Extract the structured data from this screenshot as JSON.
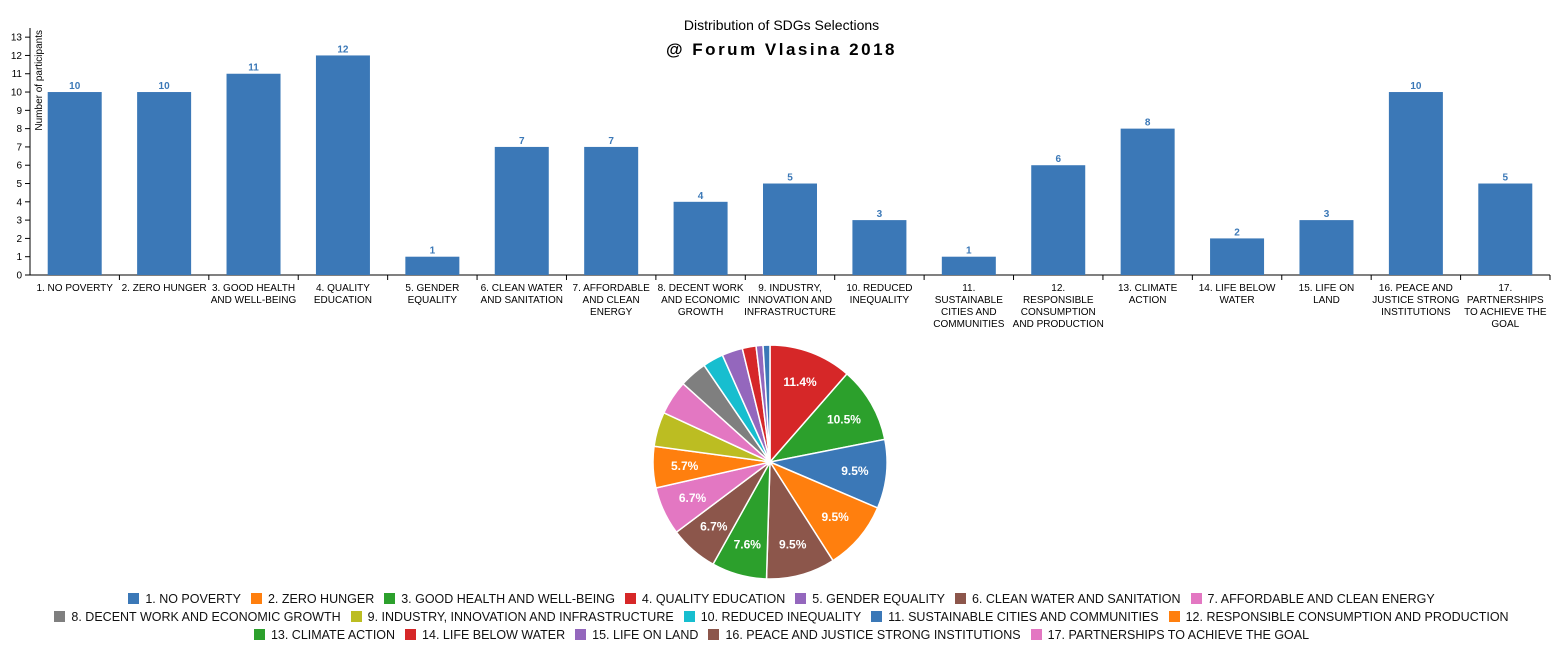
{
  "title": "Distribution of SDGs Selections",
  "subtitle": "@ Forum Vlasina 2018",
  "chart_data": [
    {
      "type": "bar",
      "ylabel": "Number of participants",
      "xlabel": "",
      "ylim": [
        0,
        13.5
      ],
      "yticks": [
        0,
        1,
        2,
        3,
        4,
        5,
        6,
        7,
        8,
        9,
        10,
        11,
        12,
        13
      ],
      "bar_color": "#3b78b7",
      "categories": [
        "1. NO POVERTY",
        "2. ZERO HUNGER",
        "3. GOOD HEALTH AND WELL-BEING",
        "4. QUALITY EDUCATION",
        "5. GENDER EQUALITY",
        "6. CLEAN WATER AND SANITATION",
        "7. AFFORDABLE AND CLEAN ENERGY",
        "8. DECENT WORK AND ECONOMIC GROWTH",
        "9. INDUSTRY, INNOVATION AND INFRASTRUCTURE",
        "10. REDUCED INEQUALITY",
        "11. SUSTAINABLE CITIES AND COMMUNITIES",
        "12. RESPONSIBLE CONSUMPTION AND PRODUCTION",
        "13. CLIMATE ACTION",
        "14. LIFE BELOW WATER",
        "15. LIFE ON LAND",
        "16. PEACE AND JUSTICE STRONG INSTITUTIONS",
        "17. PARTNERSHIPS TO ACHIEVE THE GOAL"
      ],
      "tick_labels": [
        [
          "1. NO POVERTY"
        ],
        [
          "2. ZERO HUNGER"
        ],
        [
          "3. GOOD HEALTH",
          "AND WELL-BEING"
        ],
        [
          "4. QUALITY",
          "EDUCATION"
        ],
        [
          "5. GENDER",
          "EQUALITY"
        ],
        [
          "6. CLEAN WATER",
          "AND SANITATION"
        ],
        [
          "7. AFFORDABLE",
          "AND CLEAN",
          "ENERGY"
        ],
        [
          "8. DECENT WORK",
          "AND ECONOMIC",
          "GROWTH"
        ],
        [
          "9. INDUSTRY,",
          "INNOVATION AND",
          "INFRASTRUCTURE"
        ],
        [
          "10. REDUCED",
          "INEQUALITY"
        ],
        [
          "11.",
          "SUSTAINABLE",
          "CITIES AND",
          "COMMUNITIES"
        ],
        [
          "12.",
          "RESPONSIBLE",
          "CONSUMPTION",
          "AND PRODUCTION"
        ],
        [
          "13. CLIMATE",
          "ACTION"
        ],
        [
          "14. LIFE BELOW",
          "WATER"
        ],
        [
          "15. LIFE ON",
          "LAND"
        ],
        [
          "16. PEACE AND",
          "JUSTICE STRONG",
          "INSTITUTIONS"
        ],
        [
          "17.",
          "PARTNERSHIPS",
          "TO ACHIEVE THE",
          "GOAL"
        ]
      ],
      "values": [
        10,
        10,
        11,
        12,
        1,
        7,
        7,
        4,
        5,
        3,
        1,
        6,
        8,
        2,
        3,
        10,
        5
      ]
    },
    {
      "type": "pie",
      "slices": [
        {
          "label": "4. QUALITY EDUCATION",
          "value": 12,
          "color": "#d62728",
          "pct_label": "11.4%"
        },
        {
          "label": "3. GOOD HEALTH AND WELL-BEING",
          "value": 11,
          "color": "#2ca02c",
          "pct_label": "10.5%"
        },
        {
          "label": "1. NO POVERTY",
          "value": 10,
          "color": "#3b78b7",
          "pct_label": "9.5%"
        },
        {
          "label": "2. ZERO HUNGER",
          "value": 10,
          "color": "#ff7f0e",
          "pct_label": "9.5%"
        },
        {
          "label": "16. PEACE AND JUSTICE STRONG INSTITUTIONS",
          "value": 10,
          "color": "#8c564b",
          "pct_label": "9.5%"
        },
        {
          "label": "13. CLIMATE ACTION",
          "value": 8,
          "color": "#2ca02c",
          "pct_label": "7.6%"
        },
        {
          "label": "6. CLEAN WATER AND SANITATION",
          "value": 7,
          "color": "#8c564b",
          "pct_label": "6.7%"
        },
        {
          "label": "7. AFFORDABLE AND CLEAN ENERGY",
          "value": 7,
          "color": "#e377c2",
          "pct_label": "6.7%"
        },
        {
          "label": "12. RESPONSIBLE CONSUMPTION AND PRODUCTION",
          "value": 6,
          "color": "#ff7f0e",
          "pct_label": "5.7%"
        },
        {
          "label": "9. INDUSTRY, INNOVATION AND INFRASTRUCTURE",
          "value": 5,
          "color": "#bcbd22",
          "pct_label": ""
        },
        {
          "label": "17. PARTNERSHIPS TO ACHIEVE THE GOAL",
          "value": 5,
          "color": "#e377c2",
          "pct_label": ""
        },
        {
          "label": "8. DECENT WORK AND ECONOMIC GROWTH",
          "value": 4,
          "color": "#7f7f7f",
          "pct_label": ""
        },
        {
          "label": "10. REDUCED INEQUALITY",
          "value": 3,
          "color": "#17becf",
          "pct_label": ""
        },
        {
          "label": "15. LIFE ON LAND",
          "value": 3,
          "color": "#9467bd",
          "pct_label": ""
        },
        {
          "label": "14. LIFE BELOW WATER",
          "value": 2,
          "color": "#d62728",
          "pct_label": ""
        },
        {
          "label": "5. GENDER EQUALITY",
          "value": 1,
          "color": "#9467bd",
          "pct_label": ""
        },
        {
          "label": "11. SUSTAINABLE CITIES AND COMMUNITIES",
          "value": 1,
          "color": "#3b78b7",
          "pct_label": ""
        }
      ]
    }
  ],
  "legend": {
    "rows": [
      [
        {
          "label": "1. NO POVERTY",
          "color": "#3b78b7"
        },
        {
          "label": "2. ZERO HUNGER",
          "color": "#ff7f0e"
        },
        {
          "label": "3. GOOD HEALTH AND WELL-BEING",
          "color": "#2ca02c"
        },
        {
          "label": "4. QUALITY EDUCATION",
          "color": "#d62728"
        },
        {
          "label": "5. GENDER EQUALITY",
          "color": "#9467bd"
        },
        {
          "label": "6. CLEAN WATER AND SANITATION",
          "color": "#8c564b"
        },
        {
          "label": "7. AFFORDABLE AND CLEAN ENERGY",
          "color": "#e377c2"
        }
      ],
      [
        {
          "label": "8. DECENT WORK AND ECONOMIC GROWTH",
          "color": "#7f7f7f"
        },
        {
          "label": "9. INDUSTRY, INNOVATION AND INFRASTRUCTURE",
          "color": "#bcbd22"
        },
        {
          "label": "10. REDUCED INEQUALITY",
          "color": "#17becf"
        },
        {
          "label": "11. SUSTAINABLE CITIES AND COMMUNITIES",
          "color": "#3b78b7"
        },
        {
          "label": "12. RESPONSIBLE CONSUMPTION AND PRODUCTION",
          "color": "#ff7f0e"
        }
      ],
      [
        {
          "label": "13. CLIMATE ACTION",
          "color": "#2ca02c"
        },
        {
          "label": "14. LIFE BELOW WATER",
          "color": "#d62728"
        },
        {
          "label": "15. LIFE ON LAND",
          "color": "#9467bd"
        },
        {
          "label": "16. PEACE AND JUSTICE STRONG INSTITUTIONS",
          "color": "#8c564b"
        },
        {
          "label": "17. PARTNERSHIPS TO ACHIEVE THE GOAL",
          "color": "#e377c2"
        }
      ]
    ]
  }
}
